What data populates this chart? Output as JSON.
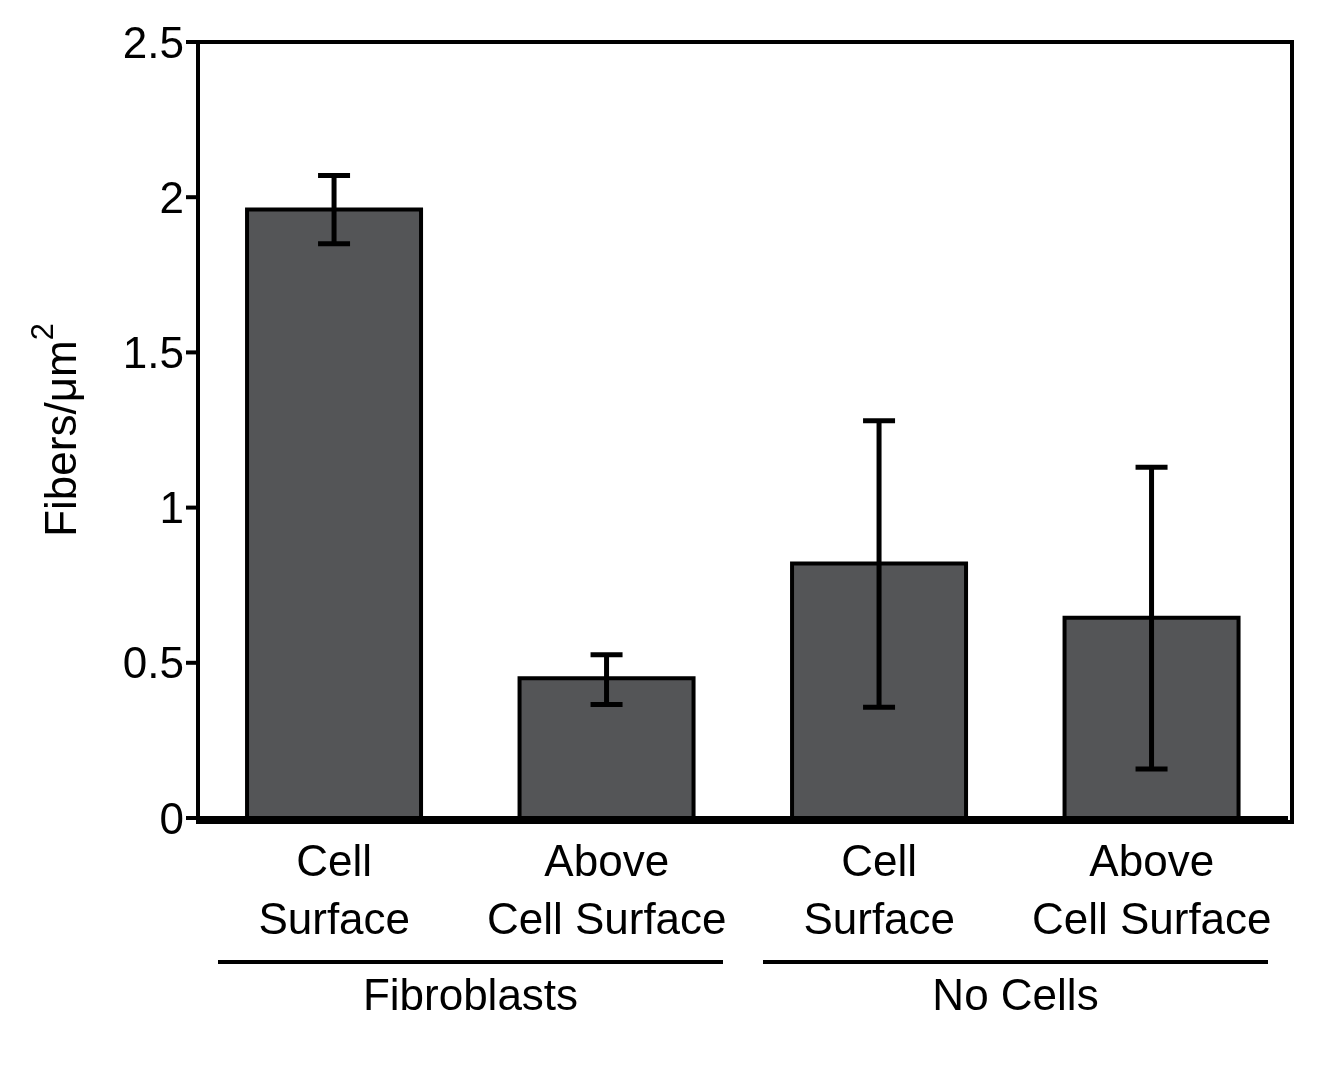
{
  "chart_data": {
    "type": "bar",
    "ylabel": "Fibers/μm$^{2}$",
    "categories": [
      "Cell Surface",
      "Above Cell Surface",
      "Cell Surface",
      "Above Cell Surface"
    ],
    "values": [
      1.96,
      0.45,
      0.82,
      0.645
    ],
    "errors": [
      [
        1.85,
        2.07
      ],
      [
        0.366,
        0.526
      ],
      [
        0.357,
        1.28
      ],
      [
        0.158,
        1.13
      ]
    ],
    "color": "#545557",
    "ylim": [
      0,
      2.5
    ],
    "yticks": [
      0,
      0.5,
      1,
      1.5,
      2,
      2.5
    ],
    "annotations": [
      "Fibroblasts",
      "No Cells"
    ]
  }
}
